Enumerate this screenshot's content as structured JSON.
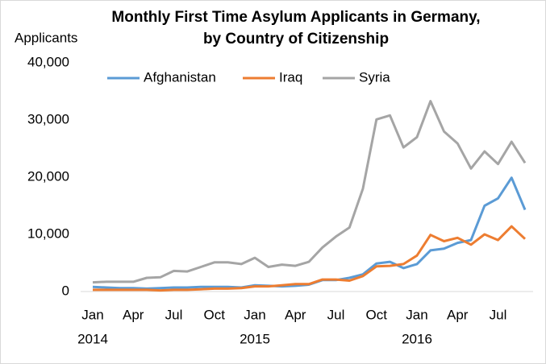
{
  "chart_data": {
    "type": "line",
    "title": [
      "Monthly First Time Asylum Applicants in Germany,",
      "by Country of Citizenship"
    ],
    "y_label": "Applicants",
    "categories": [
      "Jan",
      null,
      null,
      "Apr",
      null,
      null,
      "Jul",
      null,
      null,
      "Oct",
      null,
      null,
      "Jan",
      null,
      null,
      "Apr",
      null,
      null,
      "Jul",
      null,
      null,
      "Oct",
      null,
      null,
      "Jan",
      null,
      null,
      "Apr",
      null,
      null,
      "Jul",
      null,
      null
    ],
    "category_years": [
      "2014",
      null,
      null,
      null,
      null,
      null,
      null,
      null,
      null,
      null,
      null,
      null,
      "2015",
      null,
      null,
      null,
      null,
      null,
      null,
      null,
      null,
      null,
      null,
      null,
      "2016",
      null,
      null,
      null,
      null,
      null,
      null,
      null,
      null
    ],
    "series": [
      {
        "name": "Afghanistan",
        "color": "#5b9bd5",
        "values": [
          800,
          700,
          600,
          600,
          500,
          600,
          700,
          700,
          800,
          800,
          800,
          700,
          1100,
          1000,
          900,
          1000,
          1200,
          2000,
          2000,
          2400,
          3000,
          4900,
          5200,
          4100,
          4800,
          7200,
          7500,
          8500,
          9000,
          15000,
          16300,
          19900,
          14300
        ]
      },
      {
        "name": "Iraq",
        "color": "#ed7d31",
        "values": [
          300,
          300,
          300,
          300,
          300,
          200,
          300,
          300,
          400,
          500,
          500,
          600,
          900,
          900,
          1100,
          1300,
          1300,
          2100,
          2100,
          1900,
          2700,
          4400,
          4500,
          4800,
          6300,
          9900,
          8800,
          9400,
          8200,
          10000,
          9000,
          11400,
          9200
        ]
      },
      {
        "name": "Syria",
        "color": "#a5a5a5",
        "values": [
          1600,
          1700,
          1700,
          1700,
          2400,
          2500,
          3600,
          3500,
          4300,
          5100,
          5100,
          4800,
          5900,
          4300,
          4700,
          4500,
          5200,
          7700,
          9600,
          11200,
          18000,
          30100,
          30800,
          25200,
          27000,
          33300,
          28000,
          25900,
          21500,
          24500,
          22300,
          26200,
          22500
        ]
      }
    ],
    "ylim": [
      0,
      40000
    ],
    "yticks": [
      0,
      {
        "value": 10000,
        "label": "10,000"
      },
      {
        "value": 20000,
        "label": "20,000"
      },
      {
        "value": 30000,
        "label": "30,000"
      },
      {
        "value": 40000,
        "label": "40,000"
      }
    ],
    "grid": false,
    "legend": "top"
  }
}
